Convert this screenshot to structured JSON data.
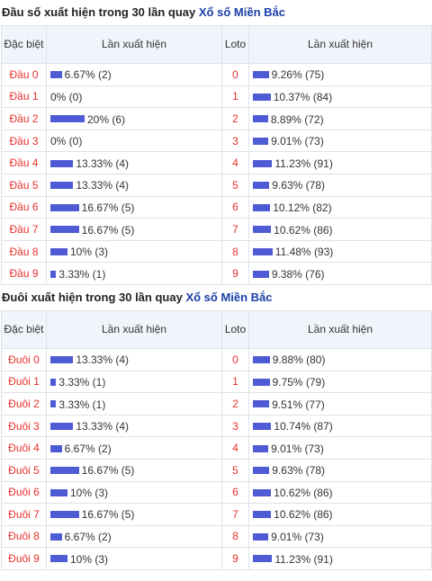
{
  "sections": [
    {
      "title": "Đầu số xuất hiện trong 30 lần quay",
      "lottery": "Xổ số Miền Bắc",
      "headers": {
        "first": "Đặc biệt",
        "count": "Lần xuất hiện",
        "loto": "Loto",
        "loto_count": "Lần xuất hiện"
      },
      "rows": [
        {
          "label": "Đầu 0",
          "pct": 6.67,
          "text": "6.67% (2)",
          "loto": "0",
          "loto_pct": 9.26,
          "loto_text": "9.26% (75)"
        },
        {
          "label": "Đầu 1",
          "pct": 0,
          "text": "0% (0)",
          "loto": "1",
          "loto_pct": 10.37,
          "loto_text": "10.37% (84)"
        },
        {
          "label": "Đầu 2",
          "pct": 20,
          "text": "20% (6)",
          "loto": "2",
          "loto_pct": 8.89,
          "loto_text": "8.89% (72)"
        },
        {
          "label": "Đầu 3",
          "pct": 0,
          "text": "0% (0)",
          "loto": "3",
          "loto_pct": 9.01,
          "loto_text": "9.01% (73)"
        },
        {
          "label": "Đầu 4",
          "pct": 13.33,
          "text": "13.33% (4)",
          "loto": "4",
          "loto_pct": 11.23,
          "loto_text": "11.23% (91)"
        },
        {
          "label": "Đầu 5",
          "pct": 13.33,
          "text": "13.33% (4)",
          "loto": "5",
          "loto_pct": 9.63,
          "loto_text": "9.63% (78)"
        },
        {
          "label": "Đầu 6",
          "pct": 16.67,
          "text": "16.67% (5)",
          "loto": "6",
          "loto_pct": 10.12,
          "loto_text": "10.12% (82)"
        },
        {
          "label": "Đầu 7",
          "pct": 16.67,
          "text": "16.67% (5)",
          "loto": "7",
          "loto_pct": 10.62,
          "loto_text": "10.62% (86)"
        },
        {
          "label": "Đầu 8",
          "pct": 10,
          "text": "10% (3)",
          "loto": "8",
          "loto_pct": 11.48,
          "loto_text": "11.48% (93)"
        },
        {
          "label": "Đầu 9",
          "pct": 3.33,
          "text": "3.33% (1)",
          "loto": "9",
          "loto_pct": 9.38,
          "loto_text": "9.38% (76)"
        }
      ]
    },
    {
      "title": "Đuôi xuất hiện trong 30 lần quay",
      "lottery": "Xổ số Miền Bắc",
      "headers": {
        "first": "Đặc biệt",
        "count": "Lần xuất hiện",
        "loto": "Loto",
        "loto_count": "Lần xuất hiện"
      },
      "rows": [
        {
          "label": "Đuôi 0",
          "pct": 13.33,
          "text": "13.33% (4)",
          "loto": "0",
          "loto_pct": 9.88,
          "loto_text": "9.88% (80)"
        },
        {
          "label": "Đuôi 1",
          "pct": 3.33,
          "text": "3.33% (1)",
          "loto": "1",
          "loto_pct": 9.75,
          "loto_text": "9.75% (79)"
        },
        {
          "label": "Đuôi 2",
          "pct": 3.33,
          "text": "3.33% (1)",
          "loto": "2",
          "loto_pct": 9.51,
          "loto_text": "9.51% (77)"
        },
        {
          "label": "Đuôi 3",
          "pct": 13.33,
          "text": "13.33% (4)",
          "loto": "3",
          "loto_pct": 10.74,
          "loto_text": "10.74% (87)"
        },
        {
          "label": "Đuôi 4",
          "pct": 6.67,
          "text": "6.67% (2)",
          "loto": "4",
          "loto_pct": 9.01,
          "loto_text": "9.01% (73)"
        },
        {
          "label": "Đuôi 5",
          "pct": 16.67,
          "text": "16.67% (5)",
          "loto": "5",
          "loto_pct": 9.63,
          "loto_text": "9.63% (78)"
        },
        {
          "label": "Đuôi 6",
          "pct": 10,
          "text": "10% (3)",
          "loto": "6",
          "loto_pct": 10.62,
          "loto_text": "10.62% (86)"
        },
        {
          "label": "Đuôi 7",
          "pct": 16.67,
          "text": "16.67% (5)",
          "loto": "7",
          "loto_pct": 10.62,
          "loto_text": "10.62% (86)"
        },
        {
          "label": "Đuôi 8",
          "pct": 6.67,
          "text": "6.67% (2)",
          "loto": "8",
          "loto_pct": 9.01,
          "loto_text": "9.01% (73)"
        },
        {
          "label": "Đuôi 9",
          "pct": 10,
          "text": "10% (3)",
          "loto": "9",
          "loto_pct": 11.23,
          "loto_text": "11.23% (91)"
        }
      ]
    }
  ],
  "colors": {
    "bar": "#4f5bd5",
    "label_red": "#e8322d",
    "link_blue": "#1a3fa8",
    "header_bg": "#f1f4fb"
  }
}
